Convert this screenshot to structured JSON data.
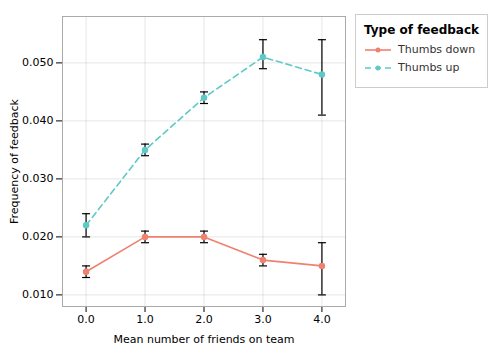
{
  "chart_data": {
    "type": "line",
    "xlabel": "Mean number of friends on team",
    "ylabel": "Frequency of feedback",
    "legend_title": "Type of feedback",
    "x": [
      0,
      1,
      2,
      3,
      4
    ],
    "xlim": [
      -0.4,
      4.4
    ],
    "xticks": [
      0,
      1,
      2,
      3,
      4
    ],
    "ylim": [
      0.008,
      0.058
    ],
    "yticks": [
      0.01,
      0.02,
      0.03,
      0.04,
      0.05
    ],
    "grid": true,
    "legend": "right",
    "series": [
      {
        "name": "Thumbs down",
        "color": "#f08070",
        "line_style": "solid",
        "marker": "circle",
        "values": [
          0.014,
          0.02,
          0.02,
          0.016,
          0.015
        ],
        "yerr_low": [
          0.001,
          0.001,
          0.001,
          0.001,
          0.005
        ],
        "yerr_high": [
          0.001,
          0.001,
          0.001,
          0.001,
          0.004
        ],
        "error_color": "black"
      },
      {
        "name": "Thumbs up",
        "color": "#5ecac8",
        "line_style": "dashed",
        "marker": "circle",
        "values": [
          0.022,
          0.035,
          0.044,
          0.051,
          0.048
        ],
        "yerr_low": [
          0.002,
          0.001,
          0.001,
          0.002,
          0.007
        ],
        "yerr_high": [
          0.002,
          0.001,
          0.001,
          0.003,
          0.006
        ],
        "error_color": "black"
      }
    ]
  }
}
